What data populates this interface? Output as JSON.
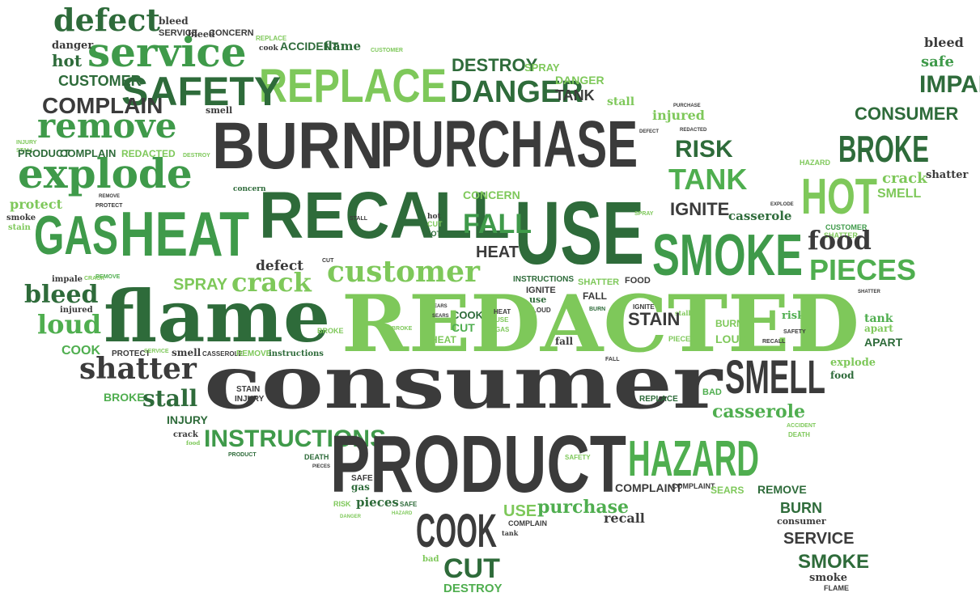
{
  "palette": {
    "dark": "#3b3b3b",
    "darkgreen": "#2e6b3a",
    "midgreen": "#3f9a4a",
    "green": "#4fae4f",
    "light": "#7ec85a"
  },
  "words": [
    {
      "text": "defect",
      "style": "serif",
      "color": "darkgreen"
    },
    {
      "text": "bleed",
      "style": "serif",
      "color": "dark"
    },
    {
      "text": "SERVICE",
      "style": "cond",
      "color": "dark"
    },
    {
      "text": "bleed",
      "style": "serif",
      "color": "dark"
    },
    {
      "text": "CONCERN",
      "style": "cond",
      "color": "dark"
    },
    {
      "text": "service",
      "style": "serif",
      "color": "midgreen"
    },
    {
      "text": "danger",
      "style": "serif",
      "color": "dark"
    },
    {
      "text": "REPLACE",
      "style": "cond",
      "color": "light"
    },
    {
      "text": "cook",
      "style": "serif",
      "color": "dark"
    },
    {
      "text": "ACCIDENT",
      "style": "cond",
      "color": "darkgreen"
    },
    {
      "text": "flame",
      "style": "serif",
      "color": "darkgreen"
    },
    {
      "text": "CUSTOMER",
      "style": "cond",
      "color": "light"
    },
    {
      "text": "hot",
      "style": "serif",
      "color": "darkgreen"
    },
    {
      "text": "REPLACE",
      "style": "cond",
      "color": "light"
    },
    {
      "text": "DESTROY",
      "style": "cond",
      "color": "darkgreen"
    },
    {
      "text": "SPRAY",
      "style": "cond",
      "color": "light"
    },
    {
      "text": "bleed",
      "style": "serif",
      "color": "dark"
    },
    {
      "text": "safe",
      "style": "serif",
      "color": "midgreen"
    },
    {
      "text": "IMPALE",
      "style": "cond",
      "color": "darkgreen"
    },
    {
      "text": "CUSTOMER",
      "style": "cond",
      "color": "darkgreen"
    },
    {
      "text": "SAFETY",
      "style": "cond",
      "color": "darkgreen"
    },
    {
      "text": "DANGER",
      "style": "cond",
      "color": "darkgreen"
    },
    {
      "text": "DANGER",
      "style": "cond",
      "color": "light"
    },
    {
      "text": "TANK",
      "style": "cond",
      "color": "dark"
    },
    {
      "text": "COMPLAIN",
      "style": "cond",
      "color": "dark"
    },
    {
      "text": "stall",
      "style": "serif",
      "color": "light"
    },
    {
      "text": "PURCHASE",
      "style": "cond",
      "color": "dark"
    },
    {
      "text": "injured",
      "style": "serif",
      "color": "light"
    },
    {
      "text": "smell",
      "style": "serif",
      "color": "dark"
    },
    {
      "text": "CONSUMER",
      "style": "cond",
      "color": "darkgreen"
    },
    {
      "text": "BURN",
      "style": "cond",
      "color": "dark"
    },
    {
      "text": "PURCHASE",
      "style": "cond",
      "color": "dark"
    },
    {
      "text": "remove",
      "style": "serif",
      "color": "midgreen"
    },
    {
      "text": "DEFECT",
      "style": "cond",
      "color": "dark"
    },
    {
      "text": "REDACTED",
      "style": "cond",
      "color": "dark"
    },
    {
      "text": "BROKE",
      "style": "cond",
      "color": "darkgreen"
    },
    {
      "text": "INJURY",
      "style": "cond",
      "color": "light"
    },
    {
      "text": "STALL",
      "style": "cond",
      "color": "light"
    },
    {
      "text": "RISK",
      "style": "cond",
      "color": "darkgreen"
    },
    {
      "text": "PRODUCT",
      "style": "cond",
      "color": "darkgreen"
    },
    {
      "text": "COMPLAIN",
      "style": "cond",
      "color": "darkgreen"
    },
    {
      "text": "REDACTED",
      "style": "cond",
      "color": "light"
    },
    {
      "text": "DESTROY",
      "style": "cond",
      "color": "light"
    },
    {
      "text": "explode",
      "style": "serif",
      "color": "midgreen"
    },
    {
      "text": "TANK",
      "style": "cond",
      "color": "green"
    },
    {
      "text": "HAZARD",
      "style": "cond",
      "color": "light"
    },
    {
      "text": "crack",
      "style": "serif",
      "color": "light"
    },
    {
      "text": "shatter",
      "style": "serif",
      "color": "dark"
    },
    {
      "text": "HOT",
      "style": "cond",
      "color": "light"
    },
    {
      "text": "SMELL",
      "style": "cond",
      "color": "light"
    },
    {
      "text": "protect",
      "style": "serif",
      "color": "light"
    },
    {
      "text": "REMOVE",
      "style": "cond",
      "color": "dark"
    },
    {
      "text": "PROTECT",
      "style": "cond",
      "color": "dark"
    },
    {
      "text": "concern",
      "style": "serif",
      "color": "darkgreen"
    },
    {
      "text": "RECALL",
      "style": "cond",
      "color": "darkgreen"
    },
    {
      "text": "CONCERN",
      "style": "cond",
      "color": "light"
    },
    {
      "text": "USE",
      "style": "cond",
      "color": "darkgreen"
    },
    {
      "text": "SPRAY",
      "style": "cond",
      "color": "light"
    },
    {
      "text": "IGNITE",
      "style": "cond",
      "color": "dark"
    },
    {
      "text": "EXPLODE",
      "style": "cond",
      "color": "dark"
    },
    {
      "text": "smoke",
      "style": "serif",
      "color": "dark"
    },
    {
      "text": "GAS",
      "style": "cond",
      "color": "midgreen"
    },
    {
      "text": "HEAT",
      "style": "cond",
      "color": "midgreen"
    },
    {
      "text": "stain",
      "style": "serif",
      "color": "light"
    },
    {
      "text": "STALL",
      "style": "cond",
      "color": "dark"
    },
    {
      "text": "hot",
      "style": "serif",
      "color": "dark"
    },
    {
      "text": "CUT",
      "style": "cond",
      "color": "light"
    },
    {
      "text": "HOT",
      "style": "cond",
      "color": "darkgreen"
    },
    {
      "text": "FALL",
      "style": "cond",
      "color": "midgreen"
    },
    {
      "text": "casserole",
      "style": "serif",
      "color": "darkgreen"
    },
    {
      "text": "SMOKE",
      "style": "cond",
      "color": "midgreen"
    },
    {
      "text": "CUSTOMER",
      "style": "cond",
      "color": "midgreen"
    },
    {
      "text": "SHATTER",
      "style": "cond",
      "color": "light"
    },
    {
      "text": "food",
      "style": "serif",
      "color": "dark"
    },
    {
      "text": "HEAT",
      "style": "cond",
      "color": "dark"
    },
    {
      "text": "defect",
      "style": "serif",
      "color": "dark"
    },
    {
      "text": "CUT",
      "style": "cond",
      "color": "dark"
    },
    {
      "text": "customer",
      "style": "serif",
      "color": "light"
    },
    {
      "text": "PIECES",
      "style": "cond",
      "color": "green"
    },
    {
      "text": "crack",
      "style": "serif",
      "color": "light"
    },
    {
      "text": "REMOVE",
      "style": "cond",
      "color": "green"
    },
    {
      "text": "impale",
      "style": "serif",
      "color": "dark"
    },
    {
      "text": "CRACK",
      "style": "cond",
      "color": "light"
    },
    {
      "text": "bleed",
      "style": "serif",
      "color": "darkgreen"
    },
    {
      "text": "flame",
      "style": "serif",
      "color": "darkgreen"
    },
    {
      "text": "SPRAY",
      "style": "cond",
      "color": "light"
    },
    {
      "text": "INSTRUCTIONS",
      "style": "cond",
      "color": "darkgreen"
    },
    {
      "text": "IGNITE",
      "style": "cond",
      "color": "dark"
    },
    {
      "text": "SHATTER",
      "style": "cond",
      "color": "light"
    },
    {
      "text": "FOOD",
      "style": "cond",
      "color": "dark"
    },
    {
      "text": "SHATTER",
      "style": "cond",
      "color": "dark"
    },
    {
      "text": "injured",
      "style": "serif",
      "color": "dark"
    },
    {
      "text": "use",
      "style": "serif",
      "color": "darkgreen"
    },
    {
      "text": "FALL",
      "style": "cond",
      "color": "dark"
    },
    {
      "text": "IGNITE",
      "style": "cond",
      "color": "dark"
    },
    {
      "text": "risk",
      "style": "serif",
      "color": "green"
    },
    {
      "text": "loud",
      "style": "serif",
      "color": "green"
    },
    {
      "text": "SEARS",
      "style": "cond",
      "color": "dark"
    },
    {
      "text": "COOK",
      "style": "cond",
      "color": "darkgreen"
    },
    {
      "text": "LOUD",
      "style": "cond",
      "color": "dark"
    },
    {
      "text": "BURN",
      "style": "cond",
      "color": "darkgreen"
    },
    {
      "text": "stall",
      "style": "serif",
      "color": "light"
    },
    {
      "text": "tank",
      "style": "serif",
      "color": "green"
    },
    {
      "text": "REDACTED",
      "style": "serif",
      "color": "light"
    },
    {
      "text": "HEAT",
      "style": "cond",
      "color": "dark"
    },
    {
      "text": "STAIN",
      "style": "cond",
      "color": "dark"
    },
    {
      "text": "CUT",
      "style": "cond",
      "color": "green"
    },
    {
      "text": "USE",
      "style": "cond",
      "color": "light"
    },
    {
      "text": "GAS",
      "style": "cond",
      "color": "light"
    },
    {
      "text": "SEARS",
      "style": "cond",
      "color": "dark"
    },
    {
      "text": "BURN",
      "style": "cond",
      "color": "light"
    },
    {
      "text": "LOUD",
      "style": "cond",
      "color": "light"
    },
    {
      "text": "apart",
      "style": "serif",
      "color": "light"
    },
    {
      "text": "COOK",
      "style": "cond",
      "color": "green"
    },
    {
      "text": "BROKE",
      "style": "cond",
      "color": "light"
    },
    {
      "text": "BROKE",
      "style": "cond",
      "color": "light"
    },
    {
      "text": "HEAT",
      "style": "cond",
      "color": "light"
    },
    {
      "text": "fall",
      "style": "serif",
      "color": "dark"
    },
    {
      "text": "PIECES",
      "style": "cond",
      "color": "light"
    },
    {
      "text": "SAFETY",
      "style": "cond",
      "color": "dark"
    },
    {
      "text": "RECALL",
      "style": "cond",
      "color": "dark"
    },
    {
      "text": "APART",
      "style": "cond",
      "color": "darkgreen"
    },
    {
      "text": "PROTECT",
      "style": "cond",
      "color": "dark"
    },
    {
      "text": "SERVICE",
      "style": "cond",
      "color": "light"
    },
    {
      "text": "smell",
      "style": "serif",
      "color": "dark"
    },
    {
      "text": "CASSEROLE",
      "style": "cond",
      "color": "dark"
    },
    {
      "text": "REMOVE",
      "style": "cond",
      "color": "light"
    },
    {
      "text": "instructions",
      "style": "serif",
      "color": "darkgreen"
    },
    {
      "text": "FALL",
      "style": "cond",
      "color": "dark"
    },
    {
      "text": "shatter",
      "style": "serif",
      "color": "dark"
    },
    {
      "text": "SMELL",
      "style": "cond",
      "color": "dark"
    },
    {
      "text": "explode",
      "style": "serif",
      "color": "light"
    },
    {
      "text": "consumer",
      "style": "serif",
      "color": "dark"
    },
    {
      "text": "food",
      "style": "serif",
      "color": "darkgreen"
    },
    {
      "text": "BROKE",
      "style": "cond",
      "color": "green"
    },
    {
      "text": "stall",
      "style": "serif",
      "color": "darkgreen"
    },
    {
      "text": "STAIN",
      "style": "cond",
      "color": "dark"
    },
    {
      "text": "INJURY",
      "style": "cond",
      "color": "dark"
    },
    {
      "text": "REPLACE",
      "style": "cond",
      "color": "darkgreen"
    },
    {
      "text": "BAD",
      "style": "cond",
      "color": "green"
    },
    {
      "text": "casserole",
      "style": "serif",
      "color": "green"
    },
    {
      "text": "INJURY",
      "style": "cond",
      "color": "darkgreen"
    },
    {
      "text": "ACCIDENT",
      "style": "cond",
      "color": "light"
    },
    {
      "text": "INSTRUCTIONS",
      "style": "cond",
      "color": "midgreen"
    },
    {
      "text": "DEATH",
      "style": "cond",
      "color": "light"
    },
    {
      "text": "crack",
      "style": "serif",
      "color": "dark"
    },
    {
      "text": "food",
      "style": "serif",
      "color": "light"
    },
    {
      "text": "PRODUCT",
      "style": "cond",
      "color": "darkgreen"
    },
    {
      "text": "HAZARD",
      "style": "cond",
      "color": "green"
    },
    {
      "text": "PRODUCT",
      "style": "cond",
      "color": "dark"
    },
    {
      "text": "DEATH",
      "style": "cond",
      "color": "darkgreen"
    },
    {
      "text": "PIECES",
      "style": "cond",
      "color": "dark"
    },
    {
      "text": "SAFETY",
      "style": "cond",
      "color": "light"
    },
    {
      "text": "SAFE",
      "style": "cond",
      "color": "dark"
    },
    {
      "text": "gas",
      "style": "serif",
      "color": "darkgreen"
    },
    {
      "text": "COMPLAINT",
      "style": "cond",
      "color": "dark"
    },
    {
      "text": "COMPLAINT",
      "style": "cond",
      "color": "dark"
    },
    {
      "text": "SEARS",
      "style": "cond",
      "color": "light"
    },
    {
      "text": "REMOVE",
      "style": "cond",
      "color": "darkgreen"
    },
    {
      "text": "RISK",
      "style": "cond",
      "color": "light"
    },
    {
      "text": "pieces",
      "style": "serif",
      "color": "darkgreen"
    },
    {
      "text": "SAFE",
      "style": "cond",
      "color": "darkgreen"
    },
    {
      "text": "DANGER",
      "style": "cond",
      "color": "light"
    },
    {
      "text": "HAZARD",
      "style": "cond",
      "color": "light"
    },
    {
      "text": "COOK",
      "style": "cond",
      "color": "dark"
    },
    {
      "text": "USE",
      "style": "cond",
      "color": "light"
    },
    {
      "text": "COMPLAIN",
      "style": "cond",
      "color": "dark"
    },
    {
      "text": "tank",
      "style": "serif",
      "color": "dark"
    },
    {
      "text": "purchase",
      "style": "serif",
      "color": "green"
    },
    {
      "text": "recall",
      "style": "serif",
      "color": "dark"
    },
    {
      "text": "BURN",
      "style": "cond",
      "color": "darkgreen"
    },
    {
      "text": "consumer",
      "style": "serif",
      "color": "dark"
    },
    {
      "text": "SERVICE",
      "style": "cond",
      "color": "dark"
    },
    {
      "text": "bad",
      "style": "serif",
      "color": "light"
    },
    {
      "text": "CUT",
      "style": "cond",
      "color": "darkgreen"
    },
    {
      "text": "SMOKE",
      "style": "cond",
      "color": "darkgreen"
    },
    {
      "text": "smoke",
      "style": "serif",
      "color": "dark"
    },
    {
      "text": "DESTROY",
      "style": "cond",
      "color": "green"
    },
    {
      "text": "FLAME",
      "style": "cond",
      "color": "dark"
    }
  ]
}
